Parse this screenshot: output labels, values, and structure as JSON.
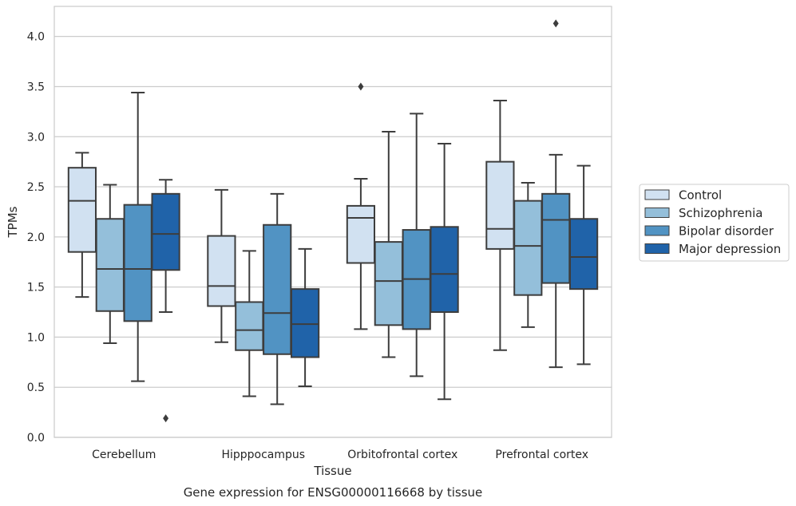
{
  "chart_data": {
    "type": "boxplot",
    "xlabel": "Tissue",
    "ylabel": "TPMs",
    "caption": "Gene expression for ENSG00000116668 by tissue",
    "ylim": [
      0,
      4.3
    ],
    "yticks": [
      "0.0",
      "0.5",
      "1.0",
      "1.5",
      "2.0",
      "2.5",
      "3.0",
      "3.5",
      "4.0"
    ],
    "grid": "horizontal",
    "legend_placement": "right, outside plot",
    "categories": [
      "Cerebellum",
      "Hipppocampus",
      "Orbitofrontal cortex",
      "Prefrontal cortex"
    ],
    "series": [
      {
        "name": "Control",
        "color": "#d1e1f1",
        "boxes": [
          {
            "whislo": 1.4,
            "q1": 1.85,
            "med": 2.36,
            "q3": 2.69,
            "whishi": 2.84,
            "fliers": []
          },
          {
            "whislo": 0.95,
            "q1": 1.31,
            "med": 1.51,
            "q3": 2.01,
            "whishi": 2.47,
            "fliers": []
          },
          {
            "whislo": 1.08,
            "q1": 1.74,
            "med": 2.19,
            "q3": 2.31,
            "whishi": 2.58,
            "fliers": [
              3.5
            ]
          },
          {
            "whislo": 0.87,
            "q1": 1.88,
            "med": 2.08,
            "q3": 2.75,
            "whishi": 3.36,
            "fliers": []
          }
        ]
      },
      {
        "name": "Schizophrenia",
        "color": "#94bfda",
        "boxes": [
          {
            "whislo": 0.94,
            "q1": 1.26,
            "med": 1.68,
            "q3": 2.18,
            "whishi": 2.52,
            "fliers": []
          },
          {
            "whislo": 0.41,
            "q1": 0.87,
            "med": 1.07,
            "q3": 1.35,
            "whishi": 1.86,
            "fliers": []
          },
          {
            "whislo": 0.8,
            "q1": 1.12,
            "med": 1.56,
            "q3": 1.95,
            "whishi": 3.05,
            "fliers": []
          },
          {
            "whislo": 1.1,
            "q1": 1.42,
            "med": 1.91,
            "q3": 2.36,
            "whishi": 2.54,
            "fliers": []
          }
        ]
      },
      {
        "name": "Bipolar disorder",
        "color": "#5193c3",
        "boxes": [
          {
            "whislo": 0.56,
            "q1": 1.16,
            "med": 1.68,
            "q3": 2.32,
            "whishi": 3.44,
            "fliers": []
          },
          {
            "whislo": 0.33,
            "q1": 0.83,
            "med": 1.24,
            "q3": 2.12,
            "whishi": 2.43,
            "fliers": []
          },
          {
            "whislo": 0.61,
            "q1": 1.08,
            "med": 1.58,
            "q3": 2.07,
            "whishi": 3.23,
            "fliers": []
          },
          {
            "whislo": 0.7,
            "q1": 1.54,
            "med": 2.17,
            "q3": 2.43,
            "whishi": 2.82,
            "fliers": [
              4.13
            ]
          }
        ]
      },
      {
        "name": "Major depression",
        "color": "#2063a9",
        "boxes": [
          {
            "whislo": 1.25,
            "q1": 1.67,
            "med": 2.03,
            "q3": 2.43,
            "whishi": 2.57,
            "fliers": [
              0.19
            ]
          },
          {
            "whislo": 0.51,
            "q1": 0.8,
            "med": 1.13,
            "q3": 1.48,
            "whishi": 1.88,
            "fliers": []
          },
          {
            "whislo": 0.38,
            "q1": 1.25,
            "med": 1.63,
            "q3": 2.1,
            "whishi": 2.93,
            "fliers": []
          },
          {
            "whislo": 0.73,
            "q1": 1.48,
            "med": 1.8,
            "q3": 2.18,
            "whishi": 2.71,
            "fliers": []
          }
        ]
      }
    ]
  }
}
